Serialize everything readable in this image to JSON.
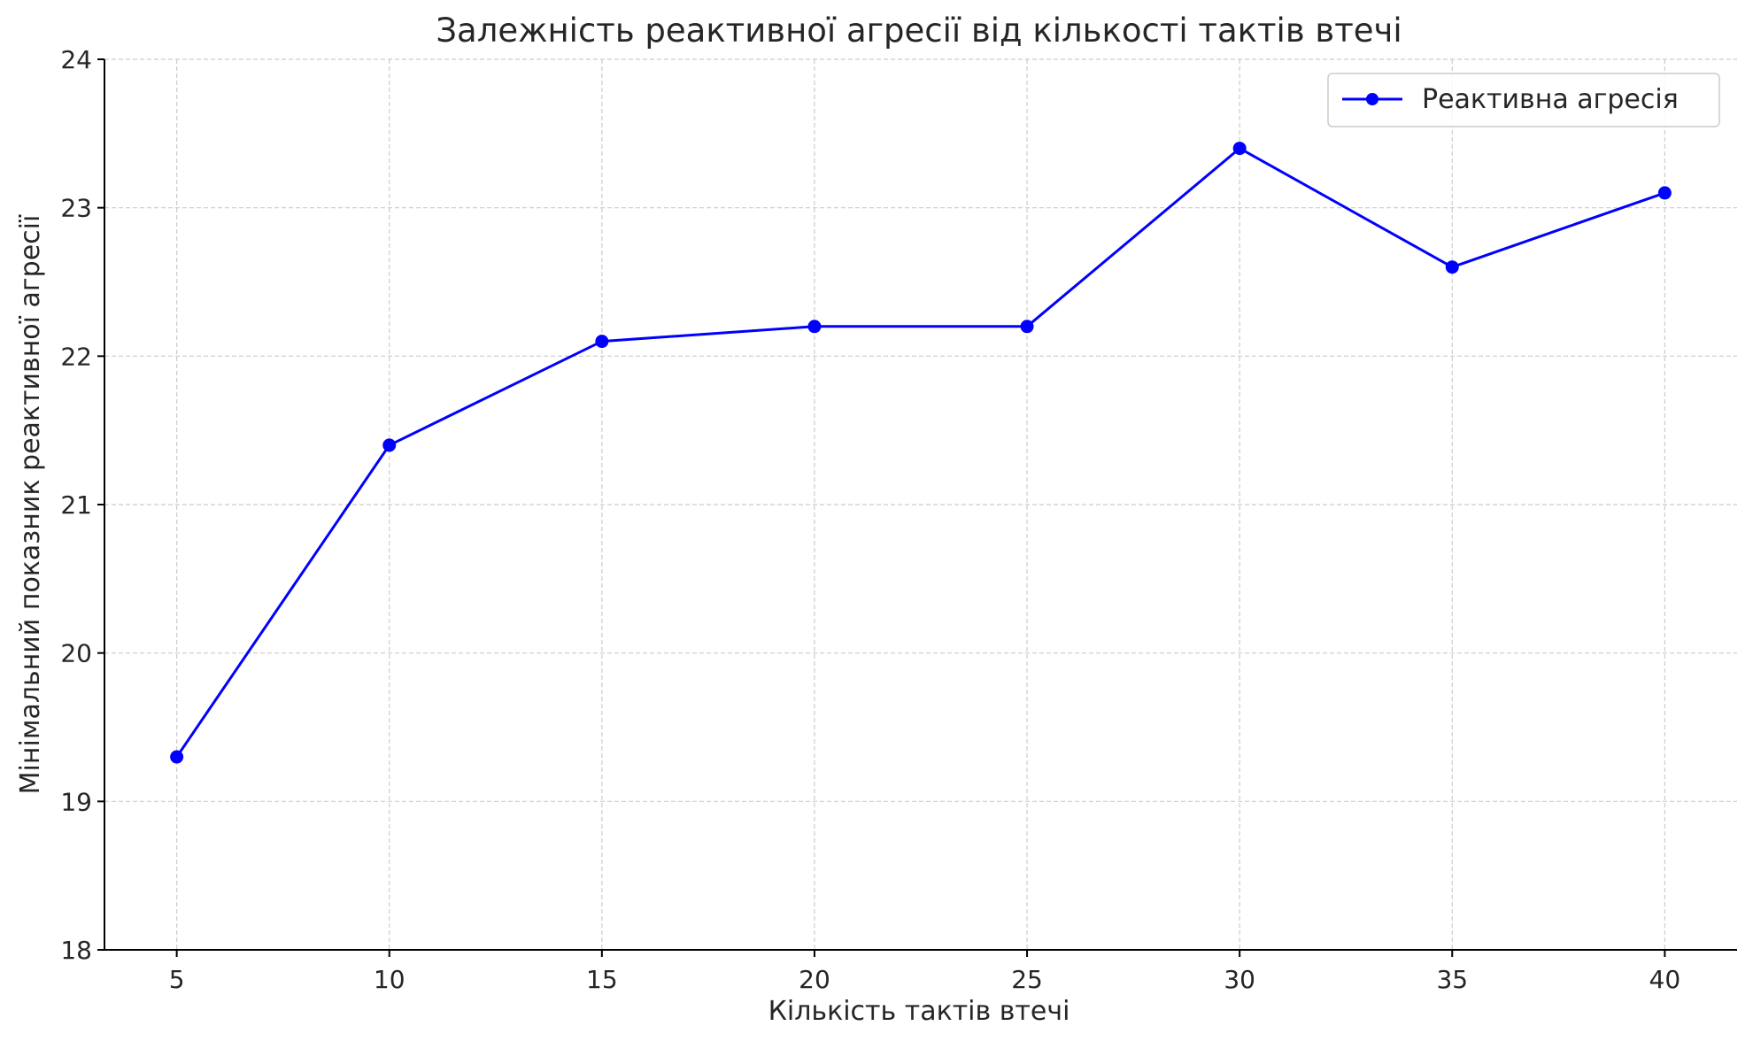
{
  "chart_data": {
    "type": "line",
    "title": "Залежність реактивної агресії від кількості тактів втечі",
    "xlabel": "Кількість тактів втечі",
    "ylabel": "Мінімальний показник реактивної агресії",
    "x": [
      5,
      10,
      15,
      20,
      25,
      30,
      35,
      40
    ],
    "x_ticks": [
      5,
      10,
      15,
      20,
      25,
      30,
      35,
      40
    ],
    "y_ticks": [
      18,
      19,
      20,
      21,
      22,
      23,
      24
    ],
    "xlim": [
      3.3,
      41.7
    ],
    "ylim": [
      18,
      24
    ],
    "grid": true,
    "legend_position": "top-right",
    "series": [
      {
        "name": "Реактивна агресія",
        "color": "#0000ff",
        "marker": "circle",
        "values": [
          19.3,
          21.4,
          22.1,
          22.2,
          22.2,
          23.4,
          22.6,
          23.1
        ]
      }
    ]
  }
}
